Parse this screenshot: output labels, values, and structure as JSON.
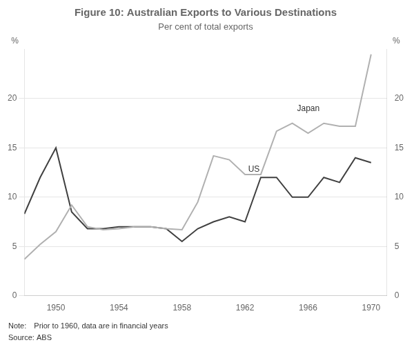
{
  "chart_data": {
    "type": "line",
    "title": "Figure 10: Australian Exports to Various Destinations",
    "subtitle": "Per cent of total exports",
    "note": "Note: Prior to 1960, data are in financial years",
    "source": "Source: ABS",
    "ylabel": "%",
    "y2label": "%",
    "xlim": [
      1948,
      1971
    ],
    "xticks": [
      1950,
      1954,
      1958,
      1962,
      1966,
      1970
    ],
    "ylim": [
      0,
      25
    ],
    "yticks": [
      0,
      5,
      10,
      15,
      20
    ],
    "y2lim": [
      0,
      25
    ],
    "y2ticks": [
      0,
      5,
      10,
      15,
      20
    ],
    "grid": "y",
    "x": [
      1948,
      1949,
      1950,
      1951,
      1952,
      1953,
      1954,
      1955,
      1956,
      1957,
      1958,
      1959,
      1960,
      1961,
      1962,
      1963,
      1964,
      1965,
      1966,
      1967,
      1968,
      1969,
      1970
    ],
    "series": [
      {
        "name": "Japan",
        "color": "#b0b0b0",
        "values": [
          3.7,
          5.2,
          6.5,
          9.2,
          7.0,
          6.7,
          6.8,
          7.0,
          7.0,
          6.8,
          6.7,
          9.5,
          14.2,
          13.8,
          12.3,
          12.3,
          16.7,
          17.5,
          16.5,
          17.5,
          17.2,
          17.2,
          24.5
        ]
      },
      {
        "name": "US",
        "color": "#404040",
        "values": [
          8.3,
          12.0,
          15.0,
          8.5,
          6.8,
          6.8,
          7.0,
          7.0,
          7.0,
          6.8,
          5.5,
          6.8,
          7.5,
          8.0,
          7.5,
          12.0,
          12.0,
          10.0,
          10.0,
          12.0,
          11.5,
          14.0,
          13.5
        ]
      }
    ],
    "annotations": [
      {
        "text": "Japan",
        "x": 1965.3,
        "y": 19.0
      },
      {
        "text": "US",
        "x": 1962.2,
        "y": 12.8
      }
    ]
  }
}
